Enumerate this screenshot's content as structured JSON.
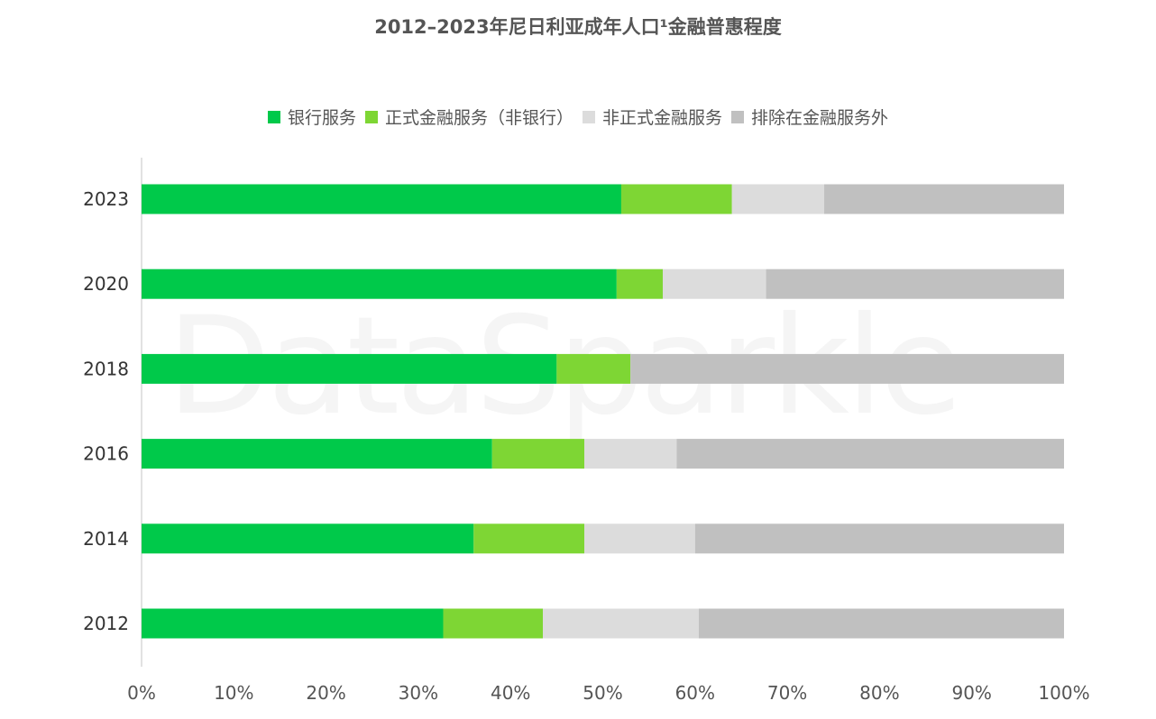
{
  "chart_data": {
    "type": "bar",
    "orientation": "horizontal",
    "stacked": true,
    "title": "2012–2023年尼日利亚成年人口¹金融普惠程度",
    "categories": [
      "2023",
      "2020",
      "2018",
      "2016",
      "2014",
      "2012"
    ],
    "series": [
      {
        "name": "银行服务",
        "color": "#00c94a",
        "values": [
          52,
          51.5,
          45,
          38,
          36,
          32.7
        ]
      },
      {
        "name": "正式金融服务（非银行）",
        "color": "#7ed634",
        "values": [
          12,
          5,
          8,
          10,
          12,
          10.8
        ]
      },
      {
        "name": "非正式金融服务",
        "color": "#dcdcdc",
        "values": [
          10,
          11.2,
          0,
          10,
          12,
          16.9
        ]
      },
      {
        "name": "排除在金融服务外",
        "color": "#c0c0c0",
        "values": [
          26,
          32.3,
          47,
          42,
          40,
          39.6
        ]
      }
    ],
    "x_ticks": [
      "0%",
      "10%",
      "20%",
      "30%",
      "40%",
      "50%",
      "60%",
      "70%",
      "80%",
      "90%",
      "100%"
    ],
    "xlim": [
      0,
      100
    ],
    "grid": false,
    "legend_position": "top"
  },
  "watermark": "DataSparkle"
}
